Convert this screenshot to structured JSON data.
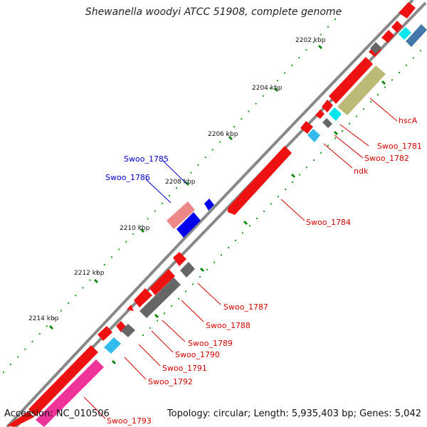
{
  "title": "Shewanella woodyi ATCC 51908, complete genome",
  "footer": {
    "accession": "Accession: NC_010506",
    "summary": "Topology: circular; Length: 5,935,403 bp; Genes: 5,042"
  },
  "ticks": [
    "2202 kbp",
    "2204 kbp",
    "2206 kbp",
    "2208 kbp",
    "2210 kbp",
    "2212 kbp",
    "2214 kbp"
  ],
  "gene_labels": [
    {
      "text": "hscA",
      "color": "#d40000"
    },
    {
      "text": "Swoo_1781",
      "color": "#d40000"
    },
    {
      "text": "Swoo_1782",
      "color": "#d40000"
    },
    {
      "text": "ndk",
      "color": "#d40000"
    },
    {
      "text": "Swoo_1784",
      "color": "#d40000"
    },
    {
      "text": "Swoo_1785",
      "color": "#0000cc"
    },
    {
      "text": "Swoo_1786",
      "color": "#0000cc"
    },
    {
      "text": "Swoo_1787",
      "color": "#d40000"
    },
    {
      "text": "Swoo_1788",
      "color": "#d40000"
    },
    {
      "text": "Swoo_1789",
      "color": "#d40000"
    },
    {
      "text": "Swoo_1790",
      "color": "#d40000"
    },
    {
      "text": "Swoo_1791",
      "color": "#d40000"
    },
    {
      "text": "Swoo_1792",
      "color": "#d40000"
    },
    {
      "text": "Swoo_1793",
      "color": "#d40000"
    }
  ],
  "colors": {
    "forward_gene": "#ee1111",
    "reverse_gene": "#0000ee",
    "pink_gene": "#ee8888",
    "rrna_cyan": "#00e5ee",
    "trna_blue": "#33bbee",
    "pseudo_grey": "#666666",
    "olive": "#bbbb77",
    "magenta": "#ee3399",
    "backbone": "#888888",
    "tick_green": "#118811"
  }
}
